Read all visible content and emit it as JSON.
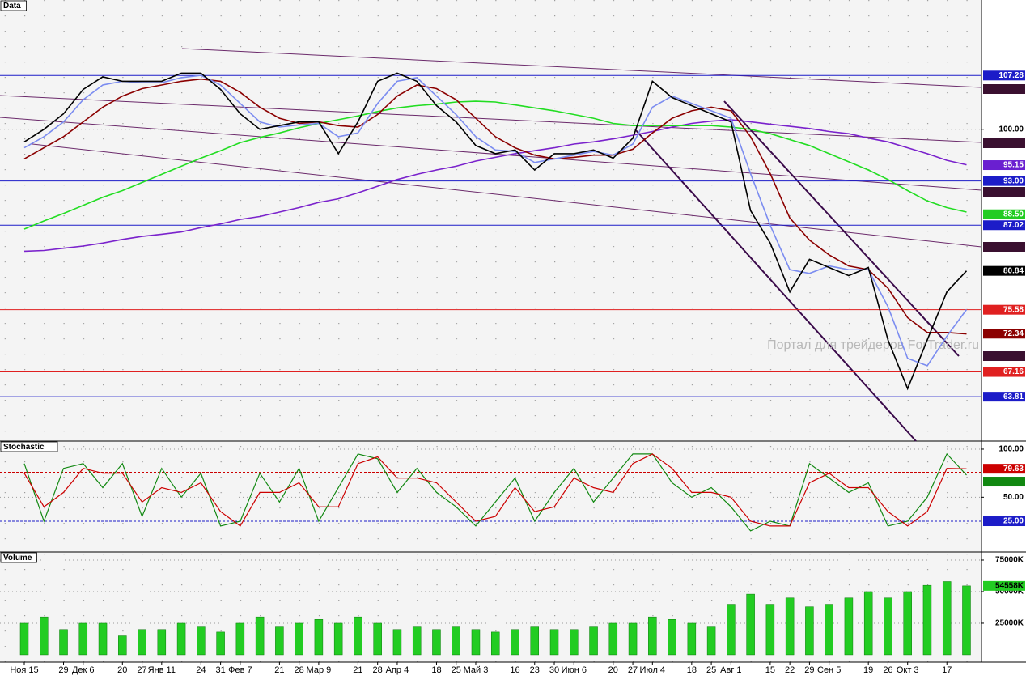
{
  "chart_data": [
    {
      "type": "line",
      "title": "Data",
      "ylim": [
        57.8,
        117.5
      ],
      "yticks": [
        {
          "value": 100,
          "label": "100.00"
        }
      ],
      "watermark": "Портал для трейдеров ForTrader.ru",
      "series": [
        {
          "color": "#7a22cc",
          "values": [
            83.5,
            83.6,
            83.9,
            84.2,
            84.6,
            85.1,
            85.5,
            85.8,
            86.1,
            86.7,
            87.2,
            87.8,
            88.2,
            88.8,
            89.4,
            90.1,
            90.6,
            91.4,
            92.3,
            93.2,
            93.9,
            94.5,
            95.0,
            95.7,
            96.2,
            96.7,
            97.1,
            97.5,
            98.0,
            98.3,
            98.7,
            99.2,
            99.7,
            100.3,
            100.8,
            101.1,
            101.3,
            101.0,
            100.7,
            100.4,
            100.1,
            99.7,
            99.4,
            98.8,
            98.3,
            97.5,
            96.7,
            95.8,
            95.2
          ]
        },
        {
          "color": "#22dd22",
          "values": [
            86.5,
            87.6,
            88.6,
            89.7,
            90.8,
            91.7,
            92.8,
            93.9,
            95.0,
            96.1,
            97.1,
            98.2,
            98.9,
            99.5,
            100.2,
            100.8,
            101.3,
            101.8,
            102.4,
            102.9,
            103.2,
            103.4,
            103.7,
            103.8,
            103.7,
            103.3,
            102.9,
            102.5,
            102.0,
            101.5,
            100.8,
            100.5,
            100.5,
            100.5,
            100.5,
            100.5,
            100.3,
            100.0,
            99.4,
            98.6,
            97.8,
            96.7,
            95.6,
            94.5,
            93.2,
            91.7,
            90.3,
            89.4,
            88.8
          ]
        },
        {
          "color": "#8b0000",
          "values": [
            96,
            97.5,
            99,
            101,
            103,
            104.5,
            105.5,
            106,
            106.5,
            106.8,
            106.5,
            105,
            103,
            101.5,
            100.8,
            101,
            100.5,
            100.3,
            102,
            104.5,
            106,
            105.5,
            104,
            101.5,
            99,
            97.5,
            96.5,
            96,
            96.2,
            96.5,
            96.5,
            97.3,
            99.5,
            101.5,
            102.5,
            103,
            102.5,
            99,
            94,
            88,
            85,
            83,
            81.5,
            81,
            78.5,
            74.5,
            72.5,
            72.5,
            72.3
          ]
        },
        {
          "color": "#7b8cf0",
          "values": [
            97.5,
            99,
            101,
            104,
            106,
            106.5,
            106.3,
            106.3,
            107,
            107.3,
            106,
            103.5,
            101,
            100.3,
            100.6,
            100.8,
            99,
            99.5,
            103.5,
            106.5,
            107,
            104.5,
            102,
            99,
            97.2,
            97,
            95.5,
            96,
            96.5,
            97,
            96.5,
            98,
            103,
            104.5,
            103.5,
            102.5,
            101.5,
            94,
            87,
            81,
            80.5,
            81.5,
            81,
            81,
            76,
            69,
            68,
            72,
            75.6
          ]
        },
        {
          "color": "#000000",
          "values": [
            98.3,
            100.0,
            102.1,
            105.4,
            107.1,
            106.5,
            106.5,
            106.5,
            107.6,
            107.6,
            105.4,
            102.1,
            100.0,
            100.5,
            101.0,
            101.0,
            96.7,
            101.0,
            106.5,
            107.6,
            106.5,
            103.2,
            101.0,
            97.8,
            96.7,
            97.2,
            94.5,
            96.7,
            96.7,
            97.2,
            96.1,
            98.8,
            106.5,
            104.3,
            103.2,
            102.1,
            101.0,
            89.0,
            84.6,
            78.0,
            82.4,
            81.3,
            80.2,
            81.3,
            71.5,
            64.9,
            71.5,
            78.0,
            80.84
          ]
        }
      ],
      "levels": [
        {
          "value": 107.28,
          "color": "#1c1cc8",
          "line": true
        },
        {
          "value": 95.15,
          "color": "#6a1fd0",
          "line": false
        },
        {
          "value": 93,
          "label": "93.00",
          "color": "#1c1cc8",
          "line": true
        },
        {
          "value": 88.5,
          "label": "88.50",
          "color": "#22cc22",
          "line": false
        },
        {
          "value": 87.02,
          "color": "#1c1cc8",
          "line": true
        },
        {
          "value": 80.84,
          "color": "#000000",
          "line": false
        },
        {
          "value": 75.58,
          "color": "#e02020",
          "line": true
        },
        {
          "value": 72.34,
          "color": "#8b0000",
          "line": false
        },
        {
          "value": 67.16,
          "color": "#e02020",
          "line": true
        },
        {
          "value": 63.81,
          "color": "#1c1cc8",
          "line": true
        }
      ]
    },
    {
      "type": "line",
      "title": "Stochastic",
      "ylim": [
        -7,
        108.4
      ],
      "yticks": [
        {
          "value": 100,
          "label": "100.00"
        },
        {
          "value": 50,
          "label": "50.00"
        }
      ],
      "series": [
        {
          "color": "#118811",
          "values": [
            85,
            25,
            80,
            85,
            60,
            85,
            30,
            80,
            50,
            75,
            20,
            25,
            75,
            45,
            80,
            25,
            60,
            95,
            90,
            55,
            80,
            55,
            40,
            20,
            45,
            70,
            25,
            55,
            80,
            45,
            70,
            95,
            95,
            65,
            50,
            60,
            40,
            15,
            25,
            20,
            85,
            70,
            55,
            65,
            20,
            25,
            50,
            95,
            73
          ]
        },
        {
          "color": "#cc0000",
          "values": [
            75,
            40,
            55,
            80,
            75,
            75,
            45,
            60,
            55,
            65,
            35,
            20,
            55,
            55,
            65,
            40,
            40,
            85,
            92,
            70,
            70,
            65,
            45,
            25,
            30,
            60,
            35,
            40,
            70,
            60,
            55,
            85,
            95,
            80,
            55,
            55,
            50,
            25,
            20,
            20,
            65,
            75,
            60,
            60,
            35,
            20,
            35,
            80,
            79.63
          ]
        }
      ],
      "levels": [
        {
          "value": 76,
          "color": "#cc0000",
          "line": true,
          "box": false
        },
        {
          "value": 25,
          "label": "25.00",
          "color": "#1c1cc8",
          "line": true,
          "box": true
        }
      ]
    },
    {
      "type": "bar",
      "title": "Volume",
      "ylim": [
        -5800,
        81400
      ],
      "yticks": [
        {
          "value": 75000,
          "label": "75000K"
        },
        {
          "value": 50000,
          "label": "50000K"
        },
        {
          "value": 25000,
          "label": "25000K"
        }
      ],
      "color": "#22cc22",
      "current": {
        "value": 54558,
        "label": "54558K"
      },
      "categories": [
        "Ноя 15",
        null,
        "29",
        "Дек 6",
        null,
        "20",
        "27",
        "Янв 11",
        null,
        "24",
        "31",
        "Фев 7",
        null,
        "21",
        "28",
        "Мар 9",
        null,
        "21",
        "28",
        "Апр 4",
        null,
        "18",
        "25",
        "Май 3",
        null,
        "16",
        "23",
        "30",
        "Июн 6",
        null,
        "20",
        "27",
        "Июл 4",
        null,
        "18",
        "25",
        "Авг 1",
        null,
        "15",
        "22",
        "29",
        "Сен 5",
        null,
        "19",
        "26",
        "Окт 3",
        null,
        "17",
        null
      ],
      "values": [
        25000,
        30000,
        20000,
        25000,
        25000,
        15000,
        20000,
        20000,
        25000,
        22000,
        18000,
        25000,
        30000,
        22000,
        25000,
        28000,
        25000,
        30000,
        25000,
        20000,
        22000,
        20000,
        22000,
        20000,
        18000,
        20000,
        22000,
        20000,
        20000,
        22000,
        25000,
        25000,
        30000,
        28000,
        25000,
        22000,
        40000,
        48000,
        40000,
        45000,
        38000,
        40000,
        45000,
        50000,
        45000,
        50000,
        55000,
        58000,
        54558
      ]
    }
  ]
}
